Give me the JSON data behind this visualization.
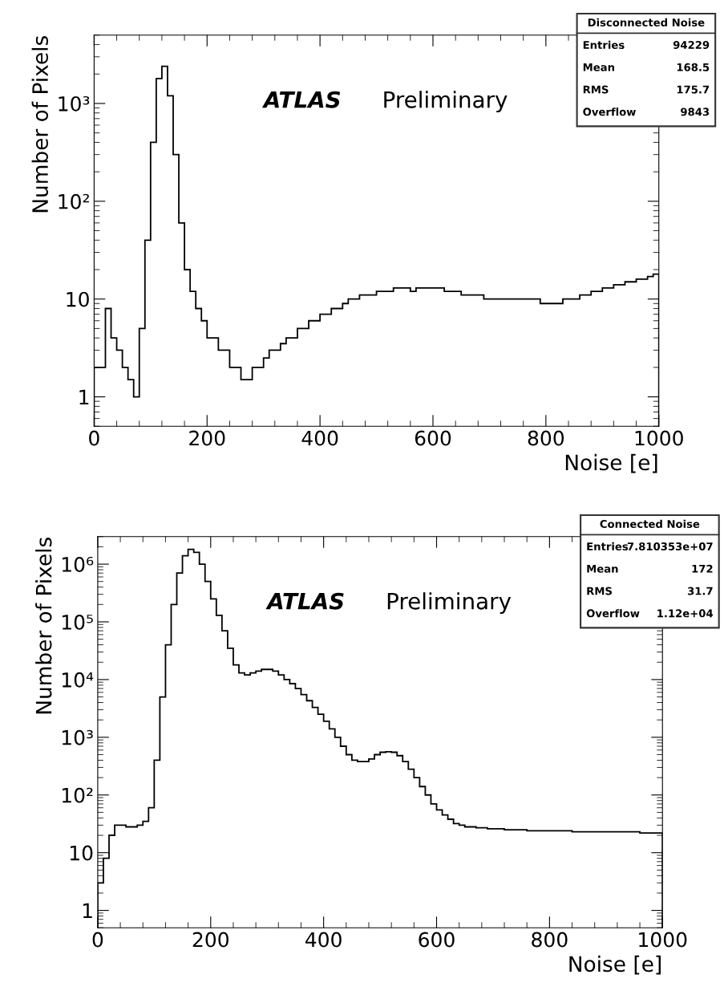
{
  "chart_data": [
    {
      "type": "histogram",
      "title": "Disconnected Noise",
      "xlabel": "Noise [e]",
      "ylabel": "Number of Pixels",
      "log": "y",
      "grid": false,
      "legend": false,
      "color": "#000000",
      "annotations": [
        "ATLAS",
        "Preliminary",
        "Entries",
        "94229",
        "Mean",
        "168.5",
        "RMS",
        "175.7",
        "Overflow",
        "9843"
      ],
      "xlim": [
        0,
        1000
      ],
      "xticks": [
        0,
        200,
        400,
        600,
        800,
        1000
      ],
      "ylim": [
        0.5,
        5000
      ],
      "yticks": [
        1,
        10,
        {
          "value": 100,
          "label": "10²"
        },
        {
          "value": 1000,
          "label": "10³"
        }
      ],
      "bins": [
        0,
        10,
        20,
        30,
        40,
        50,
        60,
        70,
        80,
        90,
        100,
        110,
        120,
        130,
        140,
        150,
        160,
        170,
        180,
        190,
        200,
        210,
        220,
        230,
        240,
        250,
        260,
        270,
        280,
        290,
        300,
        310,
        320,
        330,
        340,
        350,
        360,
        370,
        380,
        390,
        400,
        410,
        420,
        430,
        440,
        450,
        460,
        470,
        480,
        490,
        500,
        510,
        520,
        530,
        540,
        550,
        560,
        570,
        580,
        590,
        600,
        610,
        620,
        630,
        640,
        650,
        660,
        670,
        680,
        690,
        700,
        710,
        720,
        730,
        740,
        750,
        760,
        770,
        780,
        790,
        800,
        810,
        820,
        830,
        840,
        850,
        860,
        870,
        880,
        890,
        900,
        910,
        920,
        930,
        940,
        950,
        960,
        970,
        980,
        990,
        1000
      ],
      "values": [
        2,
        2,
        8,
        4,
        3,
        2,
        1.5,
        1,
        5,
        40,
        400,
        1800,
        2400,
        1200,
        300,
        60,
        20,
        12,
        8,
        6,
        4,
        4,
        3,
        3,
        2,
        2,
        1.5,
        1.5,
        2,
        2,
        2.5,
        3,
        3,
        3.5,
        4,
        4,
        5,
        5,
        6,
        6,
        7,
        7,
        8,
        8,
        9,
        10,
        10,
        11,
        11,
        11,
        12,
        12,
        12,
        13,
        13,
        13,
        12,
        13,
        13,
        13,
        13,
        13,
        12,
        12,
        12,
        11,
        11,
        11,
        11,
        10,
        10,
        10,
        10,
        10,
        10,
        10,
        10,
        10,
        10,
        9,
        9,
        9,
        9,
        10,
        10,
        10,
        11,
        11,
        12,
        12,
        13,
        13,
        14,
        14,
        15,
        15,
        16,
        16,
        17,
        18
      ]
    },
    {
      "type": "histogram",
      "title": "Connected Noise",
      "xlabel": "Noise [e]",
      "ylabel": "Number of Pixels",
      "log": "y",
      "grid": false,
      "legend": false,
      "color": "#000000",
      "annotations": [
        "ATLAS",
        "Preliminary",
        "Entries",
        "7.810353e+07",
        "Mean",
        "172",
        "RMS",
        "31.7",
        "Overflow",
        "1.12e+04"
      ],
      "xlim": [
        0,
        1000
      ],
      "xticks": [
        0,
        200,
        400,
        600,
        800,
        1000
      ],
      "ylim": [
        0.5,
        3000000
      ],
      "yticks": [
        1,
        10,
        {
          "value": 100,
          "label": "10²"
        },
        {
          "value": 1000,
          "label": "10³"
        },
        {
          "value": 10000,
          "label": "10⁴"
        },
        {
          "value": 100000,
          "label": "10⁵"
        },
        {
          "value": 1000000,
          "label": "10⁶"
        }
      ],
      "bins": [
        0,
        10,
        20,
        30,
        40,
        50,
        60,
        70,
        80,
        90,
        100,
        110,
        120,
        130,
        140,
        150,
        160,
        170,
        180,
        190,
        200,
        210,
        220,
        230,
        240,
        250,
        260,
        270,
        280,
        290,
        300,
        310,
        320,
        330,
        340,
        350,
        360,
        370,
        380,
        390,
        400,
        410,
        420,
        430,
        440,
        450,
        460,
        470,
        480,
        490,
        500,
        510,
        520,
        530,
        540,
        550,
        560,
        570,
        580,
        590,
        600,
        610,
        620,
        630,
        640,
        650,
        660,
        670,
        680,
        690,
        700,
        710,
        720,
        730,
        740,
        750,
        760,
        770,
        780,
        790,
        800,
        810,
        820,
        830,
        840,
        850,
        860,
        870,
        880,
        890,
        900,
        910,
        920,
        930,
        940,
        950,
        960,
        970,
        980,
        990,
        1000
      ],
      "values": [
        3,
        8,
        20,
        30,
        30,
        28,
        28,
        30,
        35,
        60,
        400,
        5000,
        40000,
        200000,
        700000,
        1400000,
        1800000,
        1600000,
        1000000,
        500000,
        250000,
        130000,
        70000,
        35000,
        18000,
        13000,
        12000,
        13000,
        14000,
        15000,
        15000,
        14000,
        12000,
        10000,
        8500,
        7000,
        5500,
        4300,
        3300,
        2500,
        1900,
        1400,
        1000,
        700,
        500,
        400,
        380,
        380,
        420,
        500,
        550,
        560,
        550,
        480,
        380,
        280,
        200,
        140,
        100,
        70,
        55,
        45,
        38,
        32,
        30,
        28,
        28,
        27,
        27,
        26,
        26,
        26,
        25,
        25,
        25,
        25,
        24,
        24,
        24,
        24,
        24,
        24,
        24,
        24,
        23,
        23,
        23,
        23,
        23,
        23,
        23,
        23,
        23,
        23,
        23,
        23,
        22,
        22,
        22,
        22
      ]
    }
  ]
}
